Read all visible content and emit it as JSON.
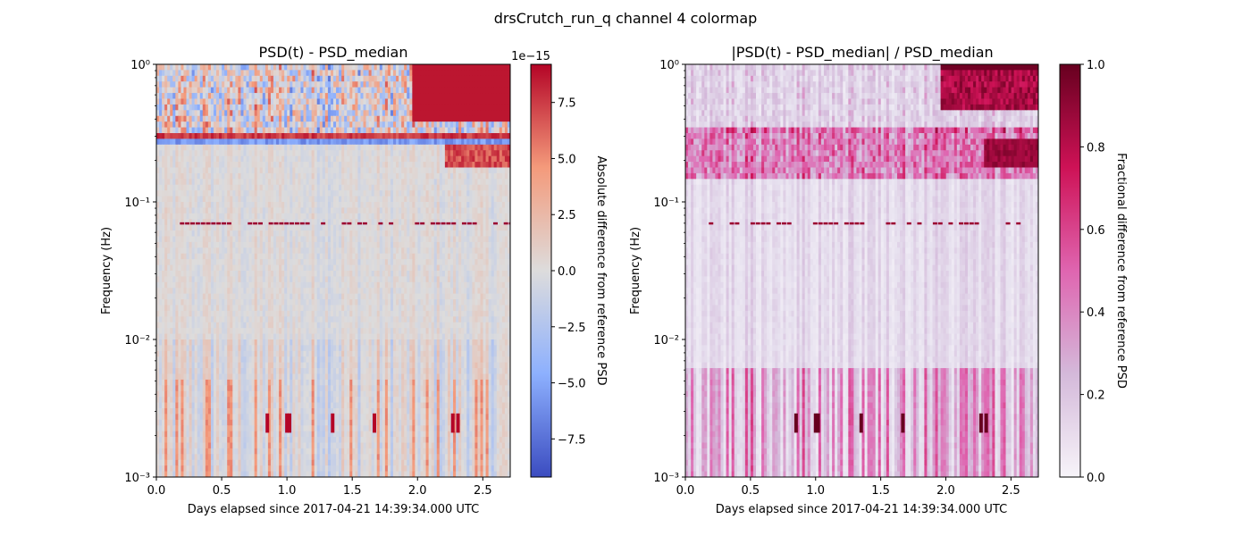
{
  "figure_title": "drsCrutch_run_q channel 4 colormap",
  "chart_data": [
    {
      "type": "heatmap",
      "title": "PSD(t) - PSD_median",
      "xlabel": "Days elapsed since 2017-04-21 14:39:34.000 UTC",
      "ylabel": "Frequency (Hz)",
      "xlim": [
        0,
        2.71
      ],
      "ylim": [
        0.001,
        1
      ],
      "yscale": "log",
      "x_ticks": [
        0.0,
        0.5,
        1.0,
        1.5,
        2.0,
        2.5
      ],
      "x_tick_labels": [
        "0.0",
        "0.5",
        "1.0",
        "1.5",
        "2.0",
        "2.5"
      ],
      "y_ticks": [
        0.001,
        0.01,
        0.1,
        1
      ],
      "y_tick_labels": [
        "10⁻³",
        "10⁻²",
        "10⁻¹",
        "10⁰"
      ],
      "colormap": "coolwarm",
      "colorbar": {
        "label": "Absolute difference from reference PSD",
        "multiplier": "1e−15",
        "range": [
          -9.2,
          9.2
        ],
        "ticks": [
          -7.5,
          -5.0,
          -2.5,
          0.0,
          2.5,
          5.0,
          7.5
        ],
        "tick_labels": [
          "−7.5",
          "−5.0",
          "−2.5",
          "0.0",
          "2.5",
          "5.0",
          "7.5"
        ]
      },
      "features": {
        "saturated_region": {
          "x": [
            1.95,
            2.71
          ],
          "freq": [
            0.4,
            1.0
          ]
        },
        "positive_line_freq": 0.3,
        "negative_line_freq": 0.27,
        "artifact_line_freq": 0.07,
        "low_freq_spikes_days": [
          0.85,
          1.0,
          1.02,
          1.35,
          1.67,
          2.27,
          2.31
        ],
        "spike_freq": [
          0.0021,
          0.0029
        ]
      }
    },
    {
      "type": "heatmap",
      "title": "|PSD(t) - PSD_median| / PSD_median",
      "xlabel": "Days elapsed since 2017-04-21 14:39:34.000 UTC",
      "ylabel": "Frequency (Hz)",
      "xlim": [
        0,
        2.71
      ],
      "ylim": [
        0.001,
        1
      ],
      "yscale": "log",
      "x_ticks": [
        0.0,
        0.5,
        1.0,
        1.5,
        2.0,
        2.5
      ],
      "x_tick_labels": [
        "0.0",
        "0.5",
        "1.0",
        "1.5",
        "2.0",
        "2.5"
      ],
      "y_ticks": [
        0.001,
        0.01,
        0.1,
        1
      ],
      "y_tick_labels": [
        "10⁻³",
        "10⁻²",
        "10⁻¹",
        "10⁰"
      ],
      "colormap": "PuRd",
      "colorbar": {
        "label": "Fractional difference from reference PSD",
        "range": [
          0,
          1
        ],
        "ticks": [
          0.0,
          0.2,
          0.4,
          0.6,
          0.8,
          1.0
        ],
        "tick_labels": [
          "0.0",
          "0.2",
          "0.4",
          "0.6",
          "0.8",
          "1.0"
        ]
      },
      "features": {
        "saturated_region": {
          "x": [
            1.95,
            2.71
          ],
          "freq": [
            0.45,
            1.0
          ]
        },
        "band_freq": [
          0.15,
          0.35
        ],
        "artifact_line_freq": 0.07,
        "low_freq_spikes_days": [
          0.85,
          1.0,
          1.02,
          1.35,
          1.67,
          2.27,
          2.31
        ],
        "spike_freq": [
          0.0021,
          0.0029
        ]
      }
    }
  ]
}
